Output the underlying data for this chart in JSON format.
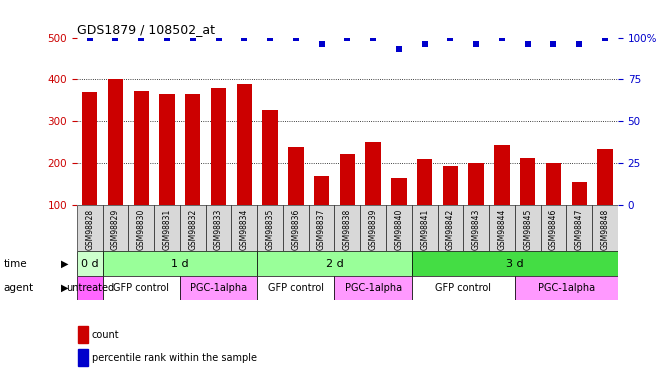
{
  "title": "GDS1879 / 108502_at",
  "samples": [
    "GSM98828",
    "GSM98829",
    "GSM98830",
    "GSM98831",
    "GSM98832",
    "GSM98833",
    "GSM98834",
    "GSM98835",
    "GSM98836",
    "GSM98837",
    "GSM98838",
    "GSM98839",
    "GSM98840",
    "GSM98841",
    "GSM98842",
    "GSM98843",
    "GSM98844",
    "GSM98845",
    "GSM98846",
    "GSM98847",
    "GSM98848"
  ],
  "counts": [
    370,
    402,
    373,
    365,
    365,
    380,
    388,
    327,
    238,
    170,
    222,
    250,
    165,
    210,
    193,
    200,
    243,
    212,
    201,
    155,
    235
  ],
  "percentiles": [
    100,
    100,
    100,
    100,
    100,
    100,
    100,
    100,
    100,
    96,
    100,
    100,
    93,
    96,
    100,
    96,
    100,
    96,
    96,
    96,
    100
  ],
  "bar_color": "#cc0000",
  "dot_color": "#0000cc",
  "ylim_left": [
    100,
    500
  ],
  "ylim_right": [
    0,
    100
  ],
  "yticks_left": [
    100,
    200,
    300,
    400,
    500
  ],
  "yticks_right": [
    0,
    25,
    50,
    75,
    100
  ],
  "yticklabels_right": [
    "0",
    "25",
    "50",
    "75",
    "100%"
  ],
  "sample_bg_color": "#d8d8d8",
  "time_segments": [
    {
      "label": "0 d",
      "start": 0,
      "end": 1,
      "color": "#ccffcc"
    },
    {
      "label": "1 d",
      "start": 1,
      "end": 7,
      "color": "#99ff99"
    },
    {
      "label": "2 d",
      "start": 7,
      "end": 13,
      "color": "#99ff99"
    },
    {
      "label": "3 d",
      "start": 13,
      "end": 21,
      "color": "#44dd44"
    }
  ],
  "agent_segments": [
    {
      "label": "untreated",
      "start": 0,
      "end": 1,
      "color": "#ff66ff"
    },
    {
      "label": "GFP control",
      "start": 1,
      "end": 4,
      "color": "#ffffff"
    },
    {
      "label": "PGC-1alpha",
      "start": 4,
      "end": 7,
      "color": "#ff99ff"
    },
    {
      "label": "GFP control",
      "start": 7,
      "end": 10,
      "color": "#ffffff"
    },
    {
      "label": "PGC-1alpha",
      "start": 10,
      "end": 13,
      "color": "#ff99ff"
    },
    {
      "label": "GFP control",
      "start": 13,
      "end": 17,
      "color": "#ffffff"
    },
    {
      "label": "PGC-1alpha",
      "start": 17,
      "end": 21,
      "color": "#ff99ff"
    }
  ],
  "bg_color": "#ffffff",
  "tick_color_left": "#cc0000",
  "tick_color_right": "#0000cc",
  "legend_count_color": "#cc0000",
  "legend_dot_color": "#0000cc"
}
